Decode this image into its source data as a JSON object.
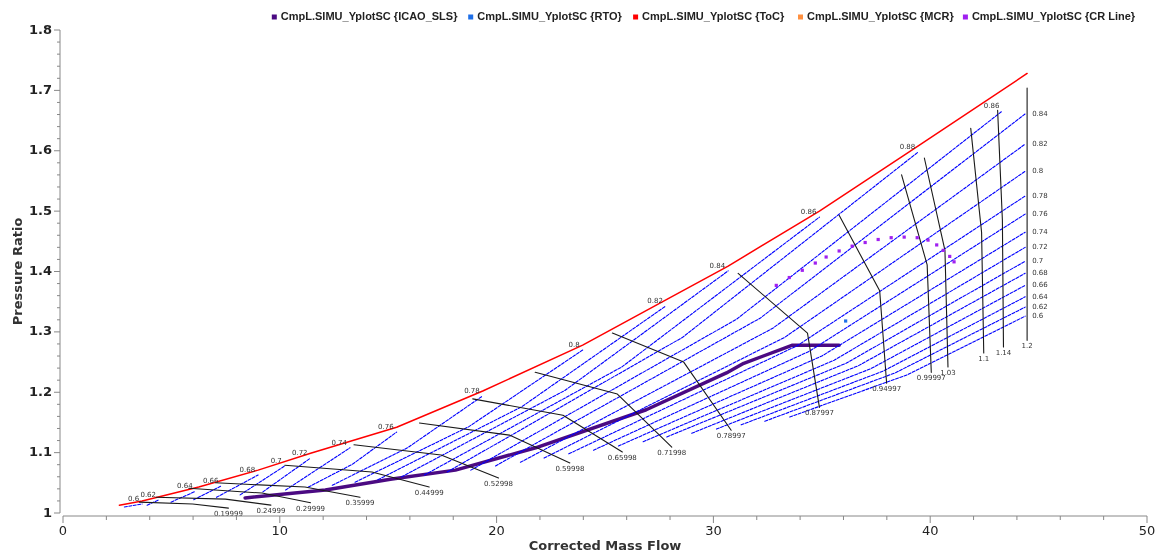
{
  "chart_data": {
    "type": "line",
    "xlabel": "Corrected Mass Flow",
    "ylabel": "Pressure Ratio",
    "xlim": [
      0,
      50
    ],
    "ylim": [
      1,
      1.8
    ],
    "xticks": [
      0,
      {
        "value": 2,
        "label": null
      },
      {
        "value": 4,
        "label": null
      },
      {
        "value": 6,
        "label": null
      },
      {
        "value": 8,
        "label": null
      },
      10,
      {
        "value": 12,
        "label": null
      },
      {
        "value": 14,
        "label": null
      },
      {
        "value": 16,
        "label": null
      },
      {
        "value": 18,
        "label": null
      },
      20,
      {
        "value": 22,
        "label": null
      },
      {
        "value": 24,
        "label": null
      },
      {
        "value": 26,
        "label": null
      },
      {
        "value": 28,
        "label": null
      },
      30,
      {
        "value": 32,
        "label": null
      },
      {
        "value": 34,
        "label": null
      },
      {
        "value": 36,
        "label": null
      },
      {
        "value": 38,
        "label": null
      },
      40,
      {
        "value": 42,
        "label": null
      },
      {
        "value": 44,
        "label": null
      },
      {
        "value": 46,
        "label": null
      },
      {
        "value": 48,
        "label": null
      },
      50
    ],
    "yticks": [
      1,
      {
        "value": 1.02,
        "label": null
      },
      {
        "value": 1.04,
        "label": null
      },
      {
        "value": 1.06,
        "label": null
      },
      {
        "value": 1.08,
        "label": null
      },
      1.1,
      {
        "value": 1.12,
        "label": null
      },
      {
        "value": 1.14,
        "label": null
      },
      {
        "value": 1.16,
        "label": null
      },
      {
        "value": 1.18,
        "label": null
      },
      1.2,
      {
        "value": 1.22,
        "label": null
      },
      {
        "value": 1.24,
        "label": null
      },
      {
        "value": 1.26,
        "label": null
      },
      {
        "value": 1.28,
        "label": null
      },
      1.3,
      {
        "value": 1.32,
        "label": null
      },
      {
        "value": 1.34,
        "label": null
      },
      {
        "value": 1.36,
        "label": null
      },
      {
        "value": 1.38,
        "label": null
      },
      1.4,
      {
        "value": 1.42,
        "label": null
      },
      {
        "value": 1.44,
        "label": null
      },
      {
        "value": 1.46,
        "label": null
      },
      {
        "value": 1.48,
        "label": null
      },
      1.5,
      {
        "value": 1.52,
        "label": null
      },
      {
        "value": 1.54,
        "label": null
      },
      {
        "value": 1.56,
        "label": null
      },
      {
        "value": 1.58,
        "label": null
      },
      1.6,
      {
        "value": 1.62,
        "label": null
      },
      {
        "value": 1.64,
        "label": null
      },
      {
        "value": 1.66,
        "label": null
      },
      {
        "value": 1.68,
        "label": null
      },
      1.7,
      {
        "value": 1.72,
        "label": null
      },
      {
        "value": 1.74,
        "label": null
      },
      {
        "value": 1.76,
        "label": null
      },
      {
        "value": 1.78,
        "label": null
      },
      1.8
    ],
    "grid": false,
    "legend": "top",
    "marker": "none",
    "line_style": "solid",
    "series": [
      {
        "color": "#0000ff",
        "line_style": "dashed",
        "x": [
          33.52,
          38.95,
          44.38
        ],
        "values": [
          1.159,
          1.229,
          1.326
        ]
      },
      {
        "color": "#0000ff",
        "line_style": "dashed",
        "x": [
          32.37,
          38.38,
          44.38
        ],
        "values": [
          1.152,
          1.232,
          1.341
        ]
      },
      {
        "color": "#0000ff",
        "line_style": "dashed",
        "x": [
          31.28,
          37.83,
          44.38
        ],
        "values": [
          1.146,
          1.235,
          1.358
        ]
      },
      {
        "color": "#0000ff",
        "line_style": "dashed",
        "x": [
          30.14,
          37.26,
          44.38
        ],
        "values": [
          1.139,
          1.239,
          1.377
        ]
      },
      {
        "color": "#0000ff",
        "line_style": "dashed",
        "x": [
          29.0,
          36.69,
          44.38
        ],
        "values": [
          1.132,
          1.244,
          1.397
        ]
      },
      {
        "color": "#0000ff",
        "line_style": "dashed",
        "x": [
          27.85,
          36.12,
          44.38
        ],
        "values": [
          1.126,
          1.248,
          1.417
        ]
      },
      {
        "color": "#0000ff",
        "line_style": "dashed",
        "x": [
          26.76,
          35.57,
          44.38
        ],
        "values": [
          1.118,
          1.253,
          1.44
        ]
      },
      {
        "color": "#0000ff",
        "line_style": "dashed",
        "x": [
          25.62,
          35.0,
          44.38
        ],
        "values": [
          1.111,
          1.26,
          1.465
        ]
      },
      {
        "color": "#0000ff",
        "line_style": "dashed",
        "x": [
          24.47,
          34.43,
          44.38
        ],
        "values": [
          1.104,
          1.268,
          1.495
        ]
      },
      {
        "color": "#0000ff",
        "line_style": "dashed",
        "x": [
          23.33,
          33.86,
          44.38
        ],
        "values": [
          1.098,
          1.277,
          1.525
        ]
      },
      {
        "color": "#0000ff",
        "line_style": "dashed",
        "x": [
          22.19,
          33.29,
          44.38
        ],
        "values": [
          1.091,
          1.291,
          1.566
        ]
      },
      {
        "color": "#0000ff",
        "line_style": "dashed",
        "x": [
          21.1,
          32.74,
          44.38
        ],
        "values": [
          1.084,
          1.306,
          1.611
        ]
      },
      {
        "color": "#0000ff",
        "line_style": "dashed",
        "x": [
          19.95,
          32.17,
          44.38
        ],
        "values": [
          1.078,
          1.323,
          1.661
        ]
      },
      {
        "color": "#0000ff",
        "line_style": "dashed",
        "x": [
          2.83,
          3.65
        ],
        "values": [
          1.01,
          1.015
        ]
      },
      {
        "color": "#0000ff",
        "line_style": "dashed",
        "x": [
          3.88,
          4.43
        ],
        "values": [
          1.013,
          1.022
        ]
      },
      {
        "color": "#0000ff",
        "line_style": "dashed",
        "x": [
          4.98,
          6.12
        ],
        "values": [
          1.018,
          1.036
        ]
      },
      {
        "color": "#0000ff",
        "line_style": "dashed",
        "x": [
          6.03,
          7.31
        ],
        "values": [
          1.022,
          1.045
        ]
      },
      {
        "color": "#0000ff",
        "line_style": "dashed",
        "x": [
          7.08,
          9.0
        ],
        "values": [
          1.026,
          1.063
        ]
      },
      {
        "color": "#0000ff",
        "line_style": "dashed",
        "x": [
          8.17,
          10.23
        ],
        "values": [
          1.03,
          1.078
        ]
      },
      {
        "color": "#0000ff",
        "line_style": "dashed",
        "x": [
          9.22,
          11.42
        ],
        "values": [
          1.035,
          1.091
        ]
      },
      {
        "color": "#0000ff",
        "line_style": "dashed",
        "x": [
          10.27,
          13.24
        ],
        "values": [
          1.038,
          1.108
        ]
      },
      {
        "color": "#0000ff",
        "line_style": "dashed",
        "x": [
          11.32,
          13.36,
          15.39
        ],
        "values": [
          1.043,
          1.081,
          1.134
        ]
      },
      {
        "color": "#0000ff",
        "line_style": "dashed",
        "x": [
          12.42,
          15.89,
          19.36
        ],
        "values": [
          1.046,
          1.108,
          1.194
        ]
      },
      {
        "color": "#0000ff",
        "line_style": "dashed",
        "x": [
          13.47,
          18.72,
          23.97
        ],
        "values": [
          1.051,
          1.143,
          1.27
        ]
      },
      {
        "color": "#0000ff",
        "line_style": "dashed",
        "x": [
          14.52,
          21.16,
          27.81
        ],
        "values": [
          1.055,
          1.176,
          1.343
        ]
      },
      {
        "color": "#0000ff",
        "line_style": "dashed",
        "x": [
          15.62,
          23.15,
          30.68
        ],
        "values": [
          1.06,
          1.203,
          1.401
        ]
      },
      {
        "color": "#0000ff",
        "line_style": "dashed",
        "x": [
          16.67,
          25.78,
          34.89
        ],
        "values": [
          1.063,
          1.242,
          1.49
        ]
      },
      {
        "color": "#0000ff",
        "line_style": "dashed",
        "x": [
          17.72,
          28.58,
          39.45
        ],
        "values": [
          1.068,
          1.291,
          1.598
        ]
      },
      {
        "color": "#0000ff",
        "line_style": "dashed",
        "x": [
          18.81,
          31.07,
          43.33
        ],
        "values": [
          1.071,
          1.321,
          1.666
        ]
      },
      {
        "color": "#1a1a1a",
        "x": [
          3.52,
          5.98,
          7.63
        ],
        "values": [
          1.018,
          1.015,
          1.008
        ]
      },
      {
        "color": "#1a1a1a",
        "x": [
          4.29,
          7.49,
          9.59
        ],
        "values": [
          1.026,
          1.023,
          1.013
        ]
      },
      {
        "color": "#1a1a1a",
        "x": [
          5.8,
          9.18,
          11.42
        ],
        "values": [
          1.041,
          1.033,
          1.017
        ]
      },
      {
        "color": "#1a1a1a",
        "x": [
          7.03,
          11.16,
          13.7
        ],
        "values": [
          1.05,
          1.043,
          1.026
        ]
      },
      {
        "color": "#1a1a1a",
        "x": [
          10.23,
          14.25,
          16.89
        ],
        "values": [
          1.079,
          1.068,
          1.043
        ]
      },
      {
        "color": "#1a1a1a",
        "x": [
          13.42,
          17.44,
          20.09
        ],
        "values": [
          1.113,
          1.096,
          1.058
        ]
      },
      {
        "color": "#1a1a1a",
        "x": [
          16.44,
          20.59,
          23.38
        ],
        "values": [
          1.149,
          1.129,
          1.083
        ]
      },
      {
        "color": "#1a1a1a",
        "x": [
          18.9,
          23.06,
          25.8
        ],
        "values": [
          1.189,
          1.162,
          1.101
        ]
      },
      {
        "color": "#1a1a1a",
        "x": [
          21.78,
          25.57,
          28.08
        ],
        "values": [
          1.233,
          1.197,
          1.109
        ]
      },
      {
        "color": "#1a1a1a",
        "x": [
          25.34,
          28.63,
          30.82
        ],
        "values": [
          1.298,
          1.25,
          1.137
        ]
      },
      {
        "color": "#1a1a1a",
        "x": [
          31.14,
          34.34,
          34.89
        ],
        "values": [
          1.397,
          1.298,
          1.175
        ]
      },
      {
        "color": "#1a1a1a",
        "x": [
          35.8,
          37.67,
          37.99
        ],
        "values": [
          1.493,
          1.368,
          1.215
        ]
      },
      {
        "color": "#1a1a1a",
        "x": [
          38.68,
          39.86,
          40.05
        ],
        "values": [
          1.56,
          1.411,
          1.233
        ]
      },
      {
        "color": "#1a1a1a",
        "x": [
          39.73,
          40.68,
          40.82
        ],
        "values": [
          1.588,
          1.435,
          1.242
        ]
      },
      {
        "color": "#1a1a1a",
        "x": [
          41.87,
          42.37,
          42.47
        ],
        "values": [
          1.637,
          1.465,
          1.265
        ]
      },
      {
        "color": "#1a1a1a",
        "x": [
          43.11,
          43.33,
          43.38
        ],
        "values": [
          1.667,
          1.485,
          1.275
        ]
      },
      {
        "color": "#1a1a1a",
        "x": [
          44.47,
          44.47
        ],
        "values": [
          1.704,
          1.286
        ]
      },
      {
        "name": "CmpL.SIMU_YplotSC {ICAO_SLS}",
        "color": "#4b0a82",
        "x": [
          8.4,
          12.1,
          15.1,
          18.1,
          21.8,
          26.9,
          30.6,
          31.4,
          33.65,
          35.8
        ],
        "values": [
          1.025,
          1.038,
          1.056,
          1.071,
          1.108,
          1.171,
          1.232,
          1.248,
          1.278,
          1.278
        ]
      },
      {
        "name": "CmpL.SIMU_YplotSC {RTO}",
        "type": "scatter",
        "marker": "square",
        "color": "#1e6fe8",
        "x": [
          36.1
        ],
        "values": [
          1.318
        ]
      },
      {
        "name": "CmpL.SIMU_YplotSC {ToC}",
        "color": "#ff0000",
        "x": [
          2.6,
          3.65,
          6.26,
          9.0,
          11.42,
          15.39,
          19.36,
          23.97,
          27.81,
          30.68,
          34.89,
          39.45,
          44.47
        ],
        "values": [
          1.013,
          1.02,
          1.043,
          1.071,
          1.099,
          1.142,
          1.202,
          1.278,
          1.353,
          1.409,
          1.5,
          1.608,
          1.728
        ]
      },
      {
        "name": "CmpL.SIMU_YplotSC {MCR}",
        "type": "scatter",
        "marker": "square",
        "color": "#ff9040"
      },
      {
        "name": "CmpL.SIMU_YplotSC {CR Line}",
        "type": "scatter",
        "marker": "square",
        "color": "#a020f0",
        "x": [
          32.9,
          33.5,
          34.1,
          34.7,
          35.2,
          35.8,
          36.4,
          37.0,
          37.6,
          38.2,
          38.8,
          39.4,
          39.9,
          40.3,
          40.6,
          40.9,
          41.1
        ],
        "values": [
          1.377,
          1.39,
          1.402,
          1.414,
          1.424,
          1.434,
          1.442,
          1.448,
          1.453,
          1.456,
          1.457,
          1.456,
          1.452,
          1.444,
          1.435,
          1.425,
          1.416
        ]
      }
    ],
    "annotations": [
      {
        "text": "0.19999",
        "x": 7.63,
        "y": 1.008
      },
      {
        "text": "0.24999",
        "x": 9.59,
        "y": 1.013
      },
      {
        "text": "0.29999",
        "x": 11.42,
        "y": 1.017
      },
      {
        "text": "0.35999",
        "x": 13.7,
        "y": 1.026
      },
      {
        "text": "0.44999",
        "x": 16.89,
        "y": 1.043
      },
      {
        "text": "0.52998",
        "x": 20.09,
        "y": 1.058
      },
      {
        "text": "0.59998",
        "x": 23.38,
        "y": 1.083
      },
      {
        "text": "0.65998",
        "x": 25.8,
        "y": 1.101
      },
      {
        "text": "0.71998",
        "x": 28.08,
        "y": 1.109
      },
      {
        "text": "0.78997",
        "x": 30.82,
        "y": 1.137
      },
      {
        "text": "0.87997",
        "x": 34.89,
        "y": 1.175
      },
      {
        "text": "0.94997",
        "x": 37.99,
        "y": 1.215
      },
      {
        "text": "0.99997",
        "x": 40.05,
        "y": 1.233
      },
      {
        "text": "1.03",
        "x": 40.82,
        "y": 1.242
      },
      {
        "text": "1.1",
        "x": 42.47,
        "y": 1.265
      },
      {
        "text": "1.14",
        "x": 43.38,
        "y": 1.275
      },
      {
        "text": "1.2",
        "x": 44.47,
        "y": 1.286
      },
      {
        "text": "0.6",
        "x": 3.65,
        "y": 1.015
      },
      {
        "text": "0.62",
        "x": 4.43,
        "y": 1.022
      },
      {
        "text": "0.64",
        "x": 6.12,
        "y": 1.036
      },
      {
        "text": "0.66",
        "x": 7.31,
        "y": 1.045
      },
      {
        "text": "0.68",
        "x": 9.0,
        "y": 1.063
      },
      {
        "text": "0.7",
        "x": 10.23,
        "y": 1.078
      },
      {
        "text": "0.72",
        "x": 11.42,
        "y": 1.091
      },
      {
        "text": "0.74",
        "x": 13.24,
        "y": 1.108
      },
      {
        "text": "0.76",
        "x": 15.39,
        "y": 1.134
      },
      {
        "text": "0.78",
        "x": 19.36,
        "y": 1.194
      },
      {
        "text": "0.8",
        "x": 23.97,
        "y": 1.27
      },
      {
        "text": "0.82",
        "x": 27.81,
        "y": 1.343
      },
      {
        "text": "0.84",
        "x": 30.68,
        "y": 1.401
      },
      {
        "text": "0.86",
        "x": 34.89,
        "y": 1.49
      },
      {
        "text": "0.88",
        "x": 39.45,
        "y": 1.598
      },
      {
        "text": "0.86",
        "x": 43.33,
        "y": 1.666
      },
      {
        "text": "0.84",
        "x": 44.38,
        "y": 1.661
      },
      {
        "text": "0.82",
        "x": 44.38,
        "y": 1.611
      },
      {
        "text": "0.8",
        "x": 44.38,
        "y": 1.566
      },
      {
        "text": "0.78",
        "x": 44.38,
        "y": 1.525
      },
      {
        "text": "0.76",
        "x": 44.38,
        "y": 1.495
      },
      {
        "text": "0.74",
        "x": 44.38,
        "y": 1.465
      },
      {
        "text": "0.72",
        "x": 44.38,
        "y": 1.44
      },
      {
        "text": "0.7",
        "x": 44.38,
        "y": 1.417
      },
      {
        "text": "0.68",
        "x": 44.38,
        "y": 1.397
      },
      {
        "text": "0.66",
        "x": 44.38,
        "y": 1.377
      },
      {
        "text": "0.64",
        "x": 44.38,
        "y": 1.358
      },
      {
        "text": "0.62",
        "x": 44.38,
        "y": 1.341
      },
      {
        "text": "0.6",
        "x": 44.38,
        "y": 1.326
      }
    ]
  }
}
